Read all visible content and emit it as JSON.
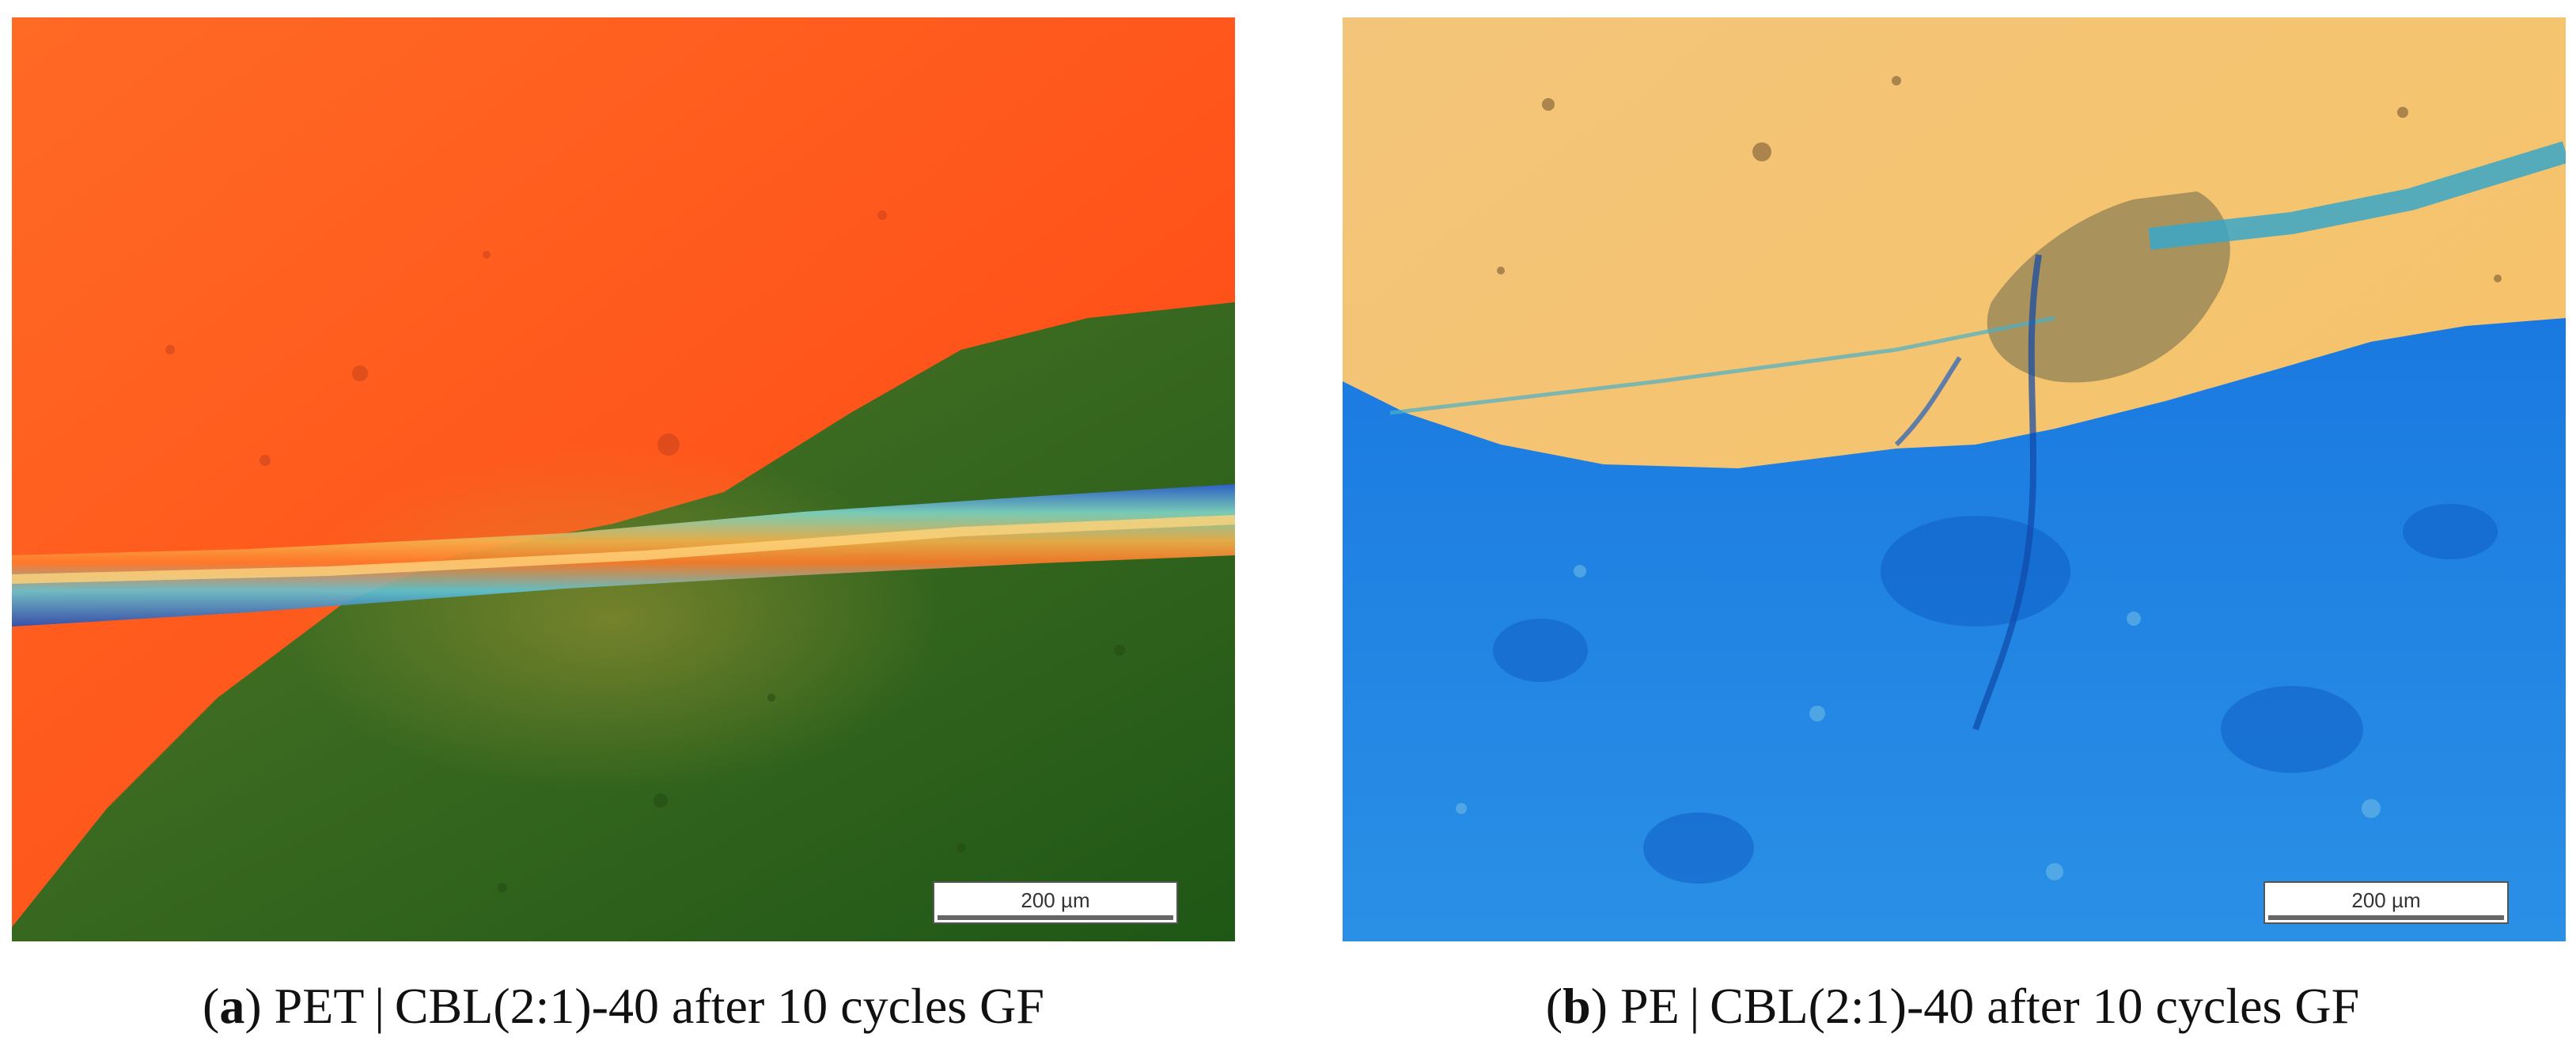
{
  "panels": [
    {
      "id": "a",
      "letter": "a",
      "caption_text": "PET | CBL(2:1)-40 after 10 cycles GF",
      "scale_bar_label": "200 µm",
      "colors": {
        "upper_region": "#ff5a1e",
        "lower_region": "#2f6a1c",
        "stripe": "#f4a441"
      }
    },
    {
      "id": "b",
      "letter": "b",
      "caption_text": "PE | CBL(2:1)-40 after 10 cycles GF",
      "scale_bar_label": "200 µm",
      "colors": {
        "upper_region": "#f6c06a",
        "lower_region": "#1f86e2",
        "crack": "#3aa7c9"
      }
    }
  ]
}
